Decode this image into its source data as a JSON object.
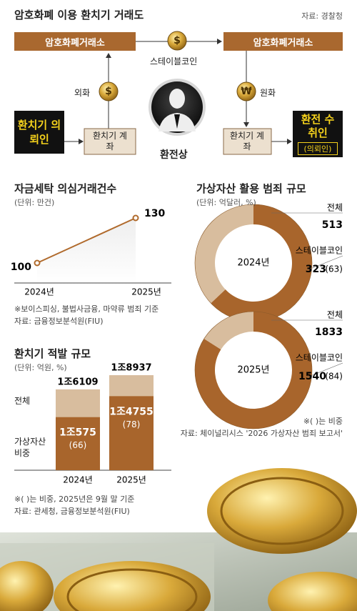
{
  "title": "암호화폐 이용 환치기 거래도",
  "source": "자료: 경찰청",
  "diagram": {
    "exchange_left": "암호화폐거래소",
    "exchange_right": "암호화폐거래소",
    "stablecoin": "스테이블코인",
    "dollar_sign": "$",
    "won_sign": "₩",
    "foreign": "외화",
    "won": "원화",
    "client": "환치기 의뢰인",
    "account_left": "환치기 계좌",
    "account_right": "환치기 계좌",
    "broker": "환전상",
    "receiver": "환전 수취인",
    "receiver_note": "(의뢰인)"
  },
  "chart_data": [
    {
      "type": "line",
      "title": "자금세탁 의심거래건수",
      "unit": "(단위: 만건)",
      "categories": [
        "2024년",
        "2025년"
      ],
      "values": [
        100,
        130
      ],
      "color": "#b06a2c",
      "notes": [
        "※보이스피싱, 불법사금융, 마약류 범죄 기준",
        "자료: 금융정보분석원(FIU)"
      ]
    },
    {
      "type": "bar",
      "title": "환치기 적발 규모",
      "unit": "(단위: 억원, %)",
      "categories": [
        "2024년",
        "2025년"
      ],
      "series": [
        {
          "name": "전체",
          "color": "#d8bd9e",
          "values": [
            16109,
            18937
          ],
          "value_labels": [
            "1조6109",
            "1조8937"
          ]
        },
        {
          "name": "가상자산 비중",
          "color": "#a8652c",
          "values": [
            10575,
            14755
          ],
          "value_labels": [
            "1조575",
            "1조4755"
          ],
          "shares": [
            66,
            78
          ],
          "share_labels": [
            "(66)",
            "(78)"
          ]
        }
      ],
      "notes": [
        "※( )는 비중, 2025년은 9월 말 기준",
        "자료: 관세청, 금융정보분석원(FIU)"
      ]
    },
    {
      "type": "pie",
      "title": "가상자산 활용 범죄 규모",
      "unit": "(단위: 억달러, %)",
      "categories": [
        "2024년",
        "2025년"
      ],
      "series": [
        {
          "name": "전체",
          "color": "#d8bd9e",
          "values": [
            513,
            1833
          ]
        },
        {
          "name": "스테이블코인",
          "color": "#a8652c",
          "values": [
            323,
            1540
          ],
          "shares": [
            63,
            84
          ],
          "share_labels": [
            "(63)",
            "(84)"
          ]
        }
      ],
      "notes": [
        "※( )는 비중",
        "자료: 체이널리시스 '2026 가상자산 범죄 보고서'"
      ]
    }
  ]
}
